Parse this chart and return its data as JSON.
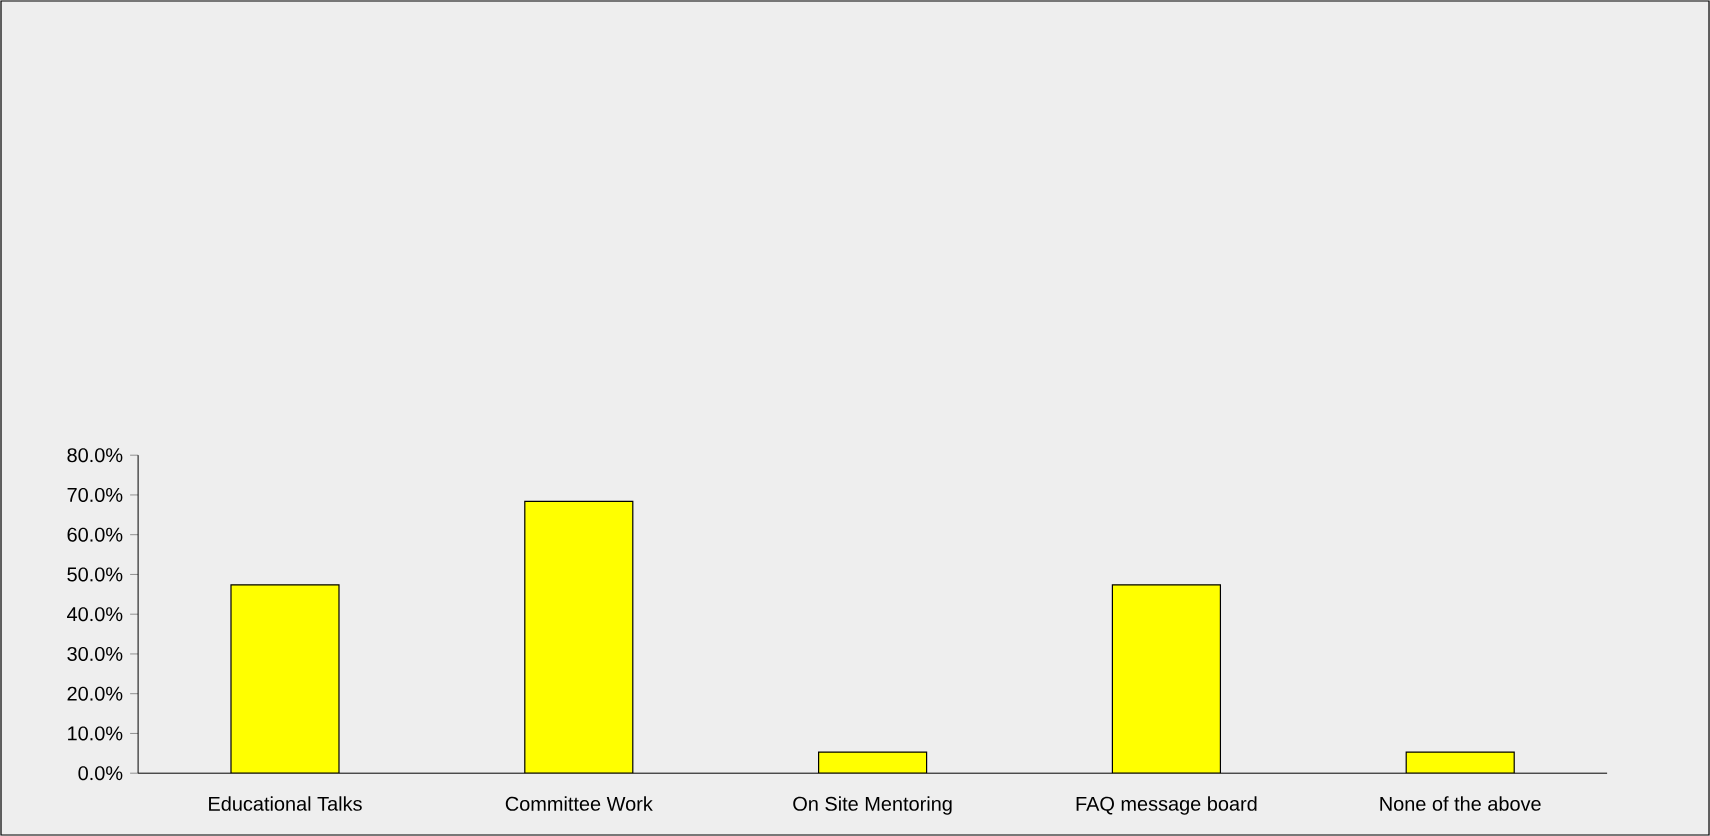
{
  "chart_data": {
    "type": "bar",
    "categories": [
      "Educational Talks",
      "Committee Work",
      "On Site Mentoring",
      "FAQ message board",
      "None of the above"
    ],
    "values": [
      47.4,
      68.4,
      5.3,
      47.4,
      5.3
    ],
    "color": "#ffff00",
    "ylim": [
      0,
      80
    ],
    "yticks": [
      {
        "value": 0,
        "label": "0.0%"
      },
      {
        "value": 10,
        "label": "10.0%"
      },
      {
        "value": 20,
        "label": "20.0%"
      },
      {
        "value": 30,
        "label": "30.0%"
      },
      {
        "value": 40,
        "label": "40.0%"
      },
      {
        "value": 50,
        "label": "50.0%"
      },
      {
        "value": 60,
        "label": "60.0%"
      },
      {
        "value": 70,
        "label": "70.0%"
      },
      {
        "value": 80,
        "label": "80.0%"
      }
    ]
  }
}
